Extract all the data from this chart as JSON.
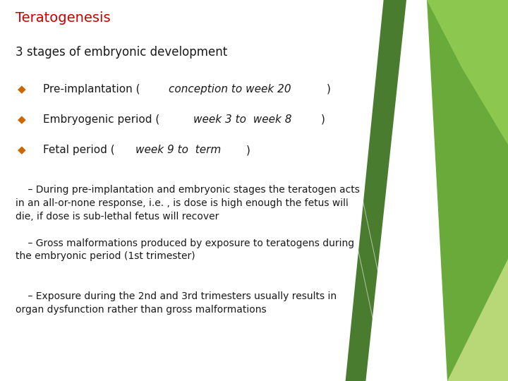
{
  "title": "Teratogenesis",
  "title_color": "#cc0000",
  "title_fontsize": 14,
  "subtitle": "3 stages of embryonic development",
  "subtitle_fontsize": 12,
  "bullet_color": "#cc6600",
  "bullet_items": [
    {
      "normal": "Pre-implantation (",
      "italic": "conception to week 20",
      "normal2": ")"
    },
    {
      "normal": "Embryogenic period (",
      "italic": "week 3 to  week 8",
      "normal2": ")"
    },
    {
      "normal": "Fetal period (",
      "italic": "week 9 to  term",
      "normal2": ")"
    }
  ],
  "bullet_fontsize": 11,
  "paragraphs": [
    "    – During pre-implantation and embryonic stages the teratogen acts\nin an all-or-none response, i.e. , is dose is high enough the fetus will\ndie, if dose is sub-lethal fetus will recover",
    "    – Gross malformations produced by exposure to teratogens during\nthe embryonic period (1st trimester)",
    "    – Exposure during the 2nd and 3rd trimesters usually results in\norgan dysfunction rather than gross malformations"
  ],
  "para_fontsize": 10,
  "bg_color": "#ffffff",
  "text_color": "#1a1a1a",
  "dark_green": "#4a7c2f",
  "mid_green": "#6aaa3a",
  "light_green": "#8cc850",
  "pale_green": "#b8d878"
}
